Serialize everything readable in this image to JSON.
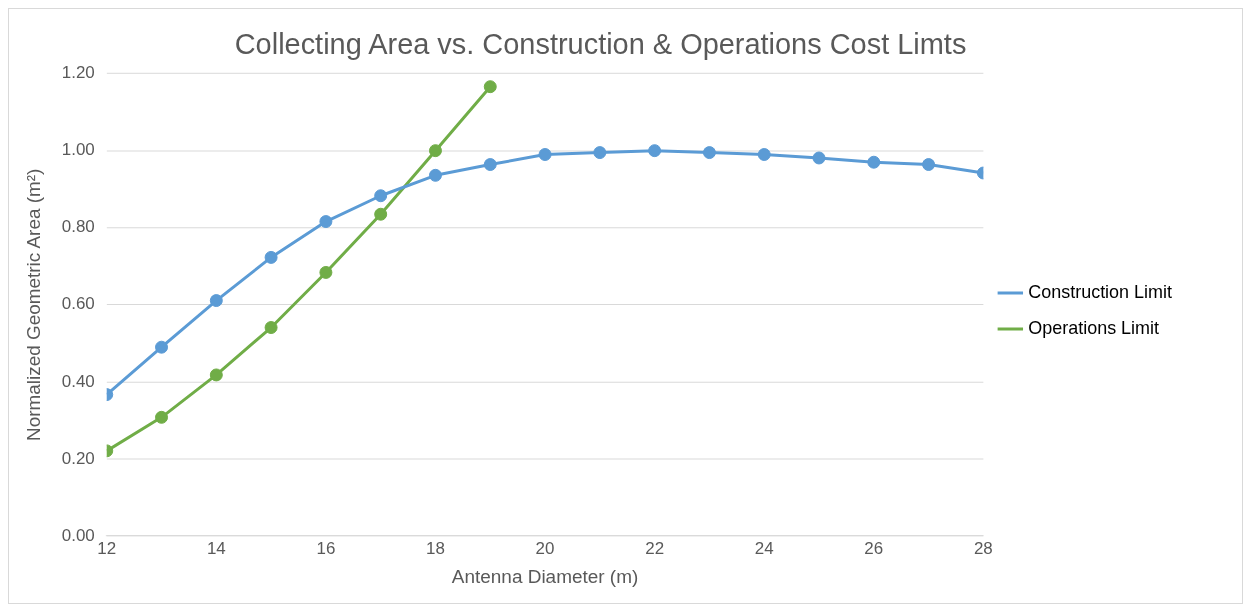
{
  "chart_data": {
    "type": "line",
    "title": "Collecting Area vs. Construction & Operations Cost Limts",
    "xlabel": "Antenna Diameter (m)",
    "ylabel": "Normalized Geometric Area (m²)",
    "x": [
      12,
      13,
      14,
      15,
      16,
      17,
      18,
      19,
      20,
      21,
      22,
      23,
      24,
      25,
      26,
      27,
      28
    ],
    "series": [
      {
        "name": "Construction Limit",
        "color": "#5b9bd5",
        "values": [
          0.367,
          0.49,
          0.611,
          0.723,
          0.816,
          0.883,
          0.936,
          0.964,
          0.99,
          0.995,
          1.0,
          0.995,
          0.99,
          0.981,
          0.97,
          0.964,
          0.942
        ]
      },
      {
        "name": "Operations Limit",
        "color": "#70ad47",
        "values": [
          0.221,
          0.308,
          0.418,
          0.541,
          0.684,
          0.835,
          1.0,
          1.166,
          null,
          null,
          null,
          null,
          null,
          null,
          null,
          null,
          null
        ]
      }
    ],
    "xlim": [
      12,
      28
    ],
    "xticks": [
      12,
      14,
      16,
      18,
      20,
      22,
      24,
      26,
      28
    ],
    "ylim": [
      0,
      1.2
    ],
    "yticks": [
      {
        "value": 0,
        "label": "0.00"
      },
      {
        "value": 0.2,
        "label": "0.20"
      },
      {
        "value": 0.4,
        "label": "0.40"
      },
      {
        "value": 0.6,
        "label": "0.60"
      },
      {
        "value": 0.8,
        "label": "0.80"
      },
      {
        "value": 1.0,
        "label": "1.00"
      },
      {
        "value": 1.2,
        "label": "1.20"
      }
    ],
    "grid": "y",
    "legend": "right",
    "marker": "circle",
    "line_style": "solid"
  }
}
